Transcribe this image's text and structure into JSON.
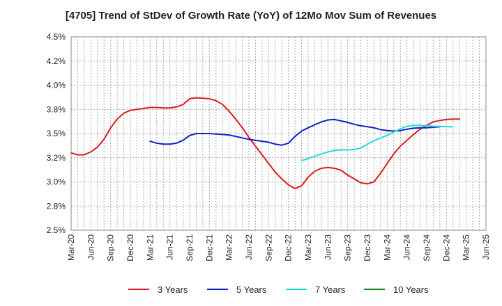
{
  "chart_data": {
    "type": "line",
    "title": "[4705]  Trend of StDev of Growth Rate (YoY) of 12Mo Mov Sum of Revenues",
    "xlabel": "",
    "ylabel": "",
    "x_ticks": [
      "Mar-20",
      "Jun-20",
      "Sep-20",
      "Dec-20",
      "Mar-21",
      "Jun-21",
      "Sep-21",
      "Dec-21",
      "Mar-22",
      "Jun-22",
      "Sep-22",
      "Dec-22",
      "Mar-23",
      "Jun-23",
      "Sep-23",
      "Dec-23",
      "Mar-24",
      "Jun-24",
      "Sep-24",
      "Dec-24",
      "Mar-25",
      "Jun-25"
    ],
    "y_ticks": [
      "4.5%",
      "4.2%",
      "4.0%",
      "3.8%",
      "3.5%",
      "3.2%",
      "3.0%",
      "2.8%",
      "2.5%"
    ],
    "ylim": [
      2.5,
      4.5
    ],
    "grid": true,
    "legend_position": "bottom",
    "series": [
      {
        "name": "3 Years",
        "color": "#dd1a1a",
        "start_index": 0,
        "values": [
          3.3,
          3.28,
          3.28,
          3.31,
          3.36,
          3.44,
          3.56,
          3.65,
          3.71,
          3.74,
          3.75,
          3.76,
          3.77,
          3.77,
          3.765,
          3.765,
          3.775,
          3.8,
          3.86,
          3.87,
          3.865,
          3.86,
          3.84,
          3.8,
          3.73,
          3.65,
          3.56,
          3.46,
          3.37,
          3.28,
          3.19,
          3.1,
          3.03,
          2.97,
          2.93,
          2.96,
          3.05,
          3.11,
          3.14,
          3.15,
          3.14,
          3.12,
          3.07,
          3.03,
          2.99,
          2.98,
          3.0,
          3.09,
          3.19,
          3.29,
          3.37,
          3.43,
          3.49,
          3.545,
          3.585,
          3.62,
          3.635,
          3.645,
          3.65,
          3.65
        ]
      },
      {
        "name": "5 Years",
        "color": "#1020c8",
        "start_index": 12,
        "values": [
          3.42,
          3.4,
          3.39,
          3.39,
          3.4,
          3.43,
          3.48,
          3.5,
          3.5,
          3.5,
          3.495,
          3.49,
          3.485,
          3.47,
          3.455,
          3.44,
          3.43,
          3.42,
          3.41,
          3.39,
          3.38,
          3.4,
          3.47,
          3.525,
          3.56,
          3.59,
          3.62,
          3.64,
          3.645,
          3.63,
          3.615,
          3.595,
          3.58,
          3.57,
          3.56,
          3.54,
          3.53,
          3.525,
          3.53,
          3.545,
          3.555,
          3.56,
          3.56,
          3.565,
          3.57
        ]
      },
      {
        "name": "7 Years",
        "color": "#22dddd",
        "start_index": 35,
        "values": [
          3.22,
          3.24,
          3.265,
          3.29,
          3.31,
          3.325,
          3.33,
          3.33,
          3.335,
          3.35,
          3.39,
          3.425,
          3.455,
          3.48,
          3.515,
          3.55,
          3.575,
          3.585,
          3.585,
          3.58,
          3.575,
          3.575,
          3.57,
          3.57
        ]
      },
      {
        "name": "10 Years",
        "color": "#118811",
        "start_index": 0,
        "values": []
      }
    ]
  }
}
